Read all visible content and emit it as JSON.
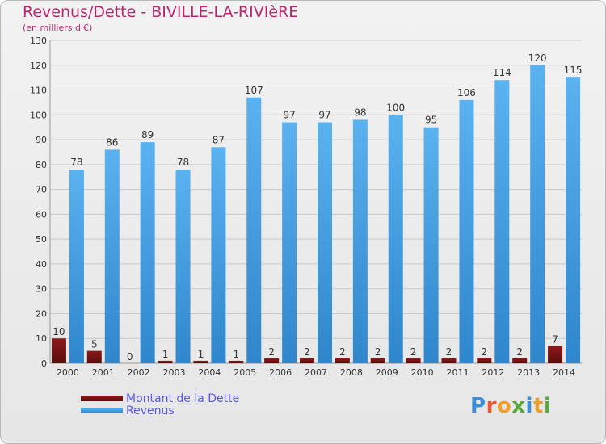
{
  "title": "Revenus/Dette - BIVILLE-LA-RIVIèRE",
  "subtitle": "(en milliers d'€)",
  "logo": {
    "text": "Proxiti",
    "colors": [
      "#3e8fd6",
      "#e8552f",
      "#f0a02a",
      "#5aa83c",
      "#3e8fd6",
      "#e8a12e",
      "#5aa83c"
    ]
  },
  "colors": {
    "dette": "#7a1212",
    "revenus": "#4ea7e8",
    "grid": "#c9c9c9",
    "axis_text": "#333333"
  },
  "chart_data": {
    "type": "bar",
    "categories": [
      "2000",
      "2001",
      "2002",
      "2003",
      "2004",
      "2005",
      "2006",
      "2007",
      "2008",
      "2009",
      "2010",
      "2011",
      "2012",
      "2013",
      "2014"
    ],
    "series": [
      {
        "name": "Montant de la Dette",
        "values": [
          10,
          5,
          0,
          1,
          1,
          1,
          2,
          2,
          2,
          2,
          2,
          2,
          2,
          2,
          7
        ]
      },
      {
        "name": "Revenus",
        "values": [
          78,
          86,
          89,
          78,
          87,
          107,
          97,
          97,
          98,
          100,
          95,
          106,
          114,
          120,
          115
        ]
      }
    ],
    "ylim": [
      0,
      130
    ],
    "yticks": [
      0,
      10,
      20,
      30,
      40,
      50,
      60,
      70,
      80,
      90,
      100,
      110,
      120,
      130
    ],
    "grid": true,
    "legend": "bottom-left"
  }
}
